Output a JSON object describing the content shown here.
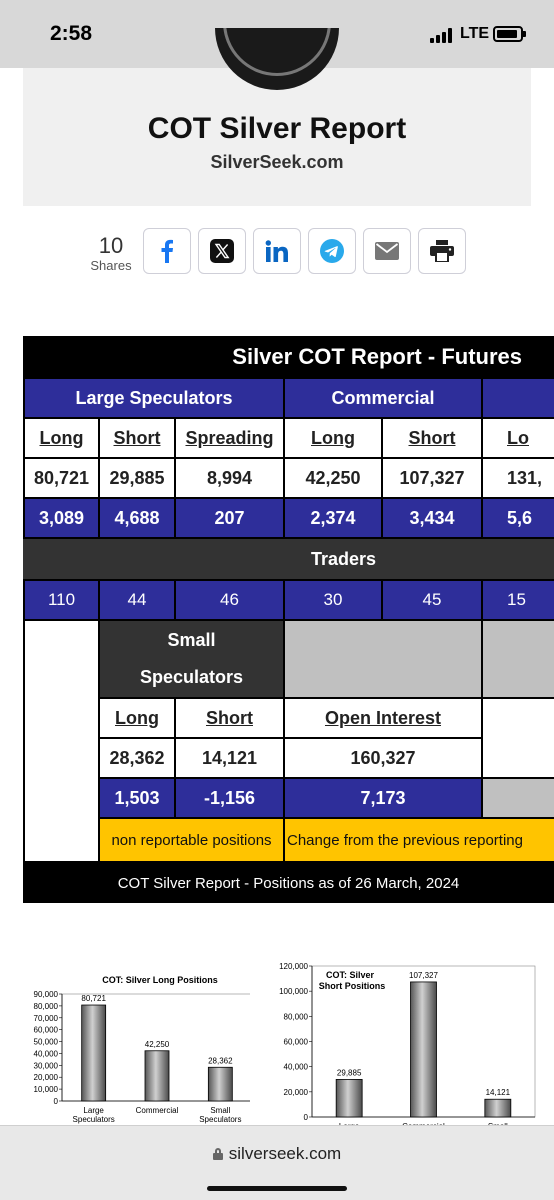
{
  "status_bar": {
    "time": "2:58",
    "network": "LTE"
  },
  "header": {
    "title": "COT Silver Report",
    "subtitle": "SilverSeek.com"
  },
  "share": {
    "count": "10",
    "label": "Shares",
    "buttons": [
      "facebook-icon",
      "x-icon",
      "linkedin-icon",
      "telegram-icon",
      "email-icon",
      "print-icon"
    ],
    "colors": {
      "facebook": "#1877f2",
      "linkedin": "#0a66c2",
      "telegram": "#29a9eb",
      "email": "#777777",
      "print": "#222222"
    }
  },
  "report": {
    "title": "Silver COT Report - Futures",
    "groups": {
      "large_speculators": "Large Speculators",
      "commercial": "Commercial"
    },
    "large_spec": {
      "headers": [
        "Long",
        "Short",
        "Spreading"
      ],
      "positions": [
        "80,721",
        "29,885",
        "8,994"
      ],
      "changes": [
        "3,089",
        "4,688",
        "207"
      ],
      "traders": [
        "110",
        "44",
        "46"
      ]
    },
    "commercial": {
      "headers": [
        "Long",
        "Short",
        "Lo"
      ],
      "positions": [
        "42,250",
        "107,327",
        "131,"
      ],
      "changes": [
        "2,374",
        "3,434",
        "5,6"
      ],
      "traders": [
        "30",
        "45",
        "15"
      ]
    },
    "traders_label": "Traders",
    "small_spec": {
      "title_line1": "Small",
      "title_line2": "Speculators",
      "headers": [
        "Long",
        "Short"
      ],
      "positions": [
        "28,362",
        "14,121"
      ],
      "changes": [
        "1,503",
        "-1,156"
      ]
    },
    "open_interest": {
      "label": "Open Interest",
      "value": "160,327",
      "change": "7,173"
    },
    "notes": {
      "non_reportable": "non reportable positions",
      "change_note": "Change from the previous reporting"
    },
    "footer": {
      "text": "COT Silver Report - Positions as of",
      "date": "26 March, 2024"
    },
    "colors": {
      "blue": "#2e2e9a",
      "dark": "#333333",
      "yellow": "#ffc400",
      "gray": "#c0c0c0"
    }
  },
  "chart_data": [
    {
      "type": "bar",
      "title": "COT: Silver Long Positions",
      "categories": [
        "Large Speculators",
        "Commercial",
        "Small Speculators"
      ],
      "values": [
        80721,
        42250,
        28362
      ],
      "data_labels": [
        "80,721",
        "42,250",
        "28,362"
      ],
      "ylim": [
        0,
        90000
      ],
      "yticks": [
        "0",
        "10,000",
        "20,000",
        "30,000",
        "40,000",
        "50,000",
        "60,000",
        "70,000",
        "80,000",
        "90,000"
      ],
      "grid": false,
      "xlabel": "",
      "ylabel": ""
    },
    {
      "type": "bar",
      "title_line1": "COT: Silver",
      "title_line2": "Short  Positions",
      "categories": [
        "Large Speculators",
        "Commercial",
        "Small Speculators"
      ],
      "values": [
        29885,
        107327,
        14121
      ],
      "data_labels": [
        "29,885",
        "107,327",
        "14,121"
      ],
      "ylim": [
        0,
        120000
      ],
      "yticks": [
        "0",
        "20,000",
        "40,000",
        "60,000",
        "80,000",
        "100,000",
        "120,000"
      ],
      "grid": false,
      "xlabel": "",
      "ylabel": ""
    }
  ],
  "url_bar": {
    "url": "silverseek.com"
  }
}
